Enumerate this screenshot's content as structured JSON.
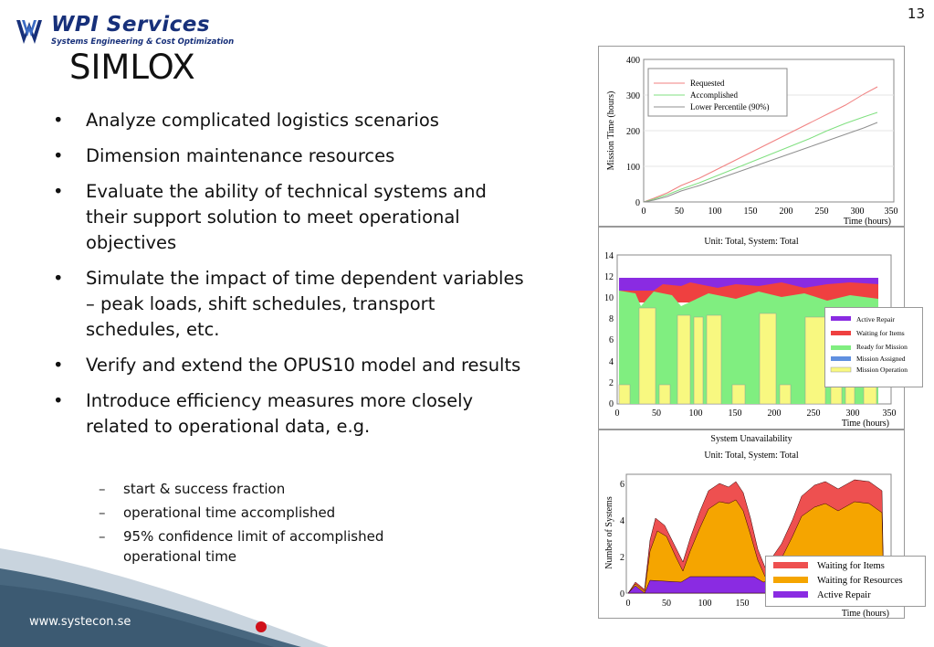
{
  "page_number": "13",
  "logo": {
    "brand": "WPI Services",
    "tagline": "Systems Engineering & Cost Optimization"
  },
  "title": "SIMLOX",
  "bullets": [
    "Analyze complicated logistics scenarios",
    "Dimension maintenance resources",
    "Evaluate the ability of technical systems and their support solution to meet operational objectives",
    "Simulate the impact of time dependent variables – peak loads, shift schedules, transport schedules, etc.",
    "Verify and extend the OPUS10 model and results",
    "Introduce efficiency measures more closely related to operational data, e.g."
  ],
  "sub_bullets": [
    "start & success fraction",
    "operational time accomplished",
    "95% confidence limit of accomplished operational time"
  ],
  "footer": {
    "website": "www.systecon.se"
  },
  "charts": {
    "mission_time": {
      "ylabel": "Mission Time (hours)",
      "xlabel": "Time (hours)",
      "yticks": [
        "0",
        "100",
        "200",
        "300",
        "400"
      ],
      "xticks": [
        "0",
        "50",
        "100",
        "150",
        "200",
        "250",
        "300",
        "350"
      ],
      "legend": [
        "Requested",
        "Accomplished",
        "Lower Percentile (90%)"
      ],
      "colors": [
        "#f08080",
        "#80e080",
        "#909090"
      ]
    },
    "status": {
      "title": "Unit: Total,    System: Total",
      "xlabel": "Time (hours)",
      "yticks": [
        "0",
        "2",
        "4",
        "6",
        "8",
        "10",
        "12",
        "14"
      ],
      "xticks": [
        "0",
        "50",
        "100",
        "150",
        "200",
        "250",
        "300",
        "350"
      ],
      "legend": [
        "Active Repair",
        "Waiting for Items",
        "Ready for Mission",
        "Mission Assigned",
        "Mission Operation"
      ],
      "colors": [
        "#8a2be2",
        "#ef4040",
        "#80ee80",
        "#6090e0",
        "#f8f880"
      ]
    },
    "unavailability": {
      "title1": "System Unavailability",
      "title2": "Unit: Total,    System: Total",
      "ylabel": "Number of Systems",
      "xlabel": "Time (hours)",
      "yticks": [
        "0",
        "2",
        "4",
        "6"
      ],
      "xticks": [
        "0",
        "50",
        "100",
        "150"
      ],
      "legend": [
        "Waiting for Items",
        "Waiting for Resources",
        "Active Repair"
      ],
      "colors": [
        "#ee5050",
        "#f5a500",
        "#8a2be2"
      ]
    }
  }
}
